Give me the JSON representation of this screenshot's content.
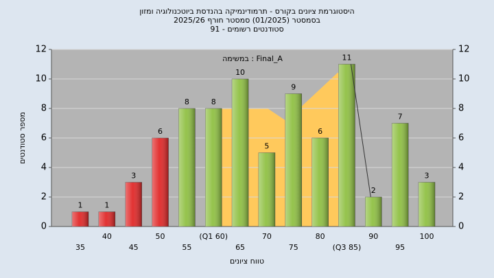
{
  "chart_data": {
    "type": "bar",
    "title": "היסטוגרמת ציונים בקורס - תרמודינמיקה בהנדסת ביוטכנולוגיה ומזון",
    "subtitle": "בסמסטר  (01/2025)  סמסטר חורף 2025/26",
    "subtitle2": "סטודנטים רשומים - 91",
    "annotation": "במשימה : Final_A",
    "y_label": "מספר סטודנטים",
    "x_label": "טווח ציונים",
    "categories": [
      "35",
      "40",
      "45",
      "50",
      "55",
      "(Q1 60)",
      "65",
      "70",
      "75",
      "80",
      "(Q3 85)",
      "90",
      "95",
      "100"
    ],
    "values": [
      1,
      1,
      3,
      6,
      8,
      8,
      10,
      5,
      9,
      6,
      11,
      2,
      7,
      3
    ],
    "colors": [
      "#e02828",
      "#e02828",
      "#e02828",
      "#e02828",
      "#8fc043",
      "#8fc043",
      "#8fc043",
      "#8fc043",
      "#8fc043",
      "#8fc043",
      "#8fc043",
      "#8fc043",
      "#8fc043",
      "#8fc043"
    ],
    "ylim": [
      0,
      12
    ],
    "yticks": [
      0,
      2,
      4,
      6,
      8,
      10,
      12
    ],
    "grid": true
  }
}
